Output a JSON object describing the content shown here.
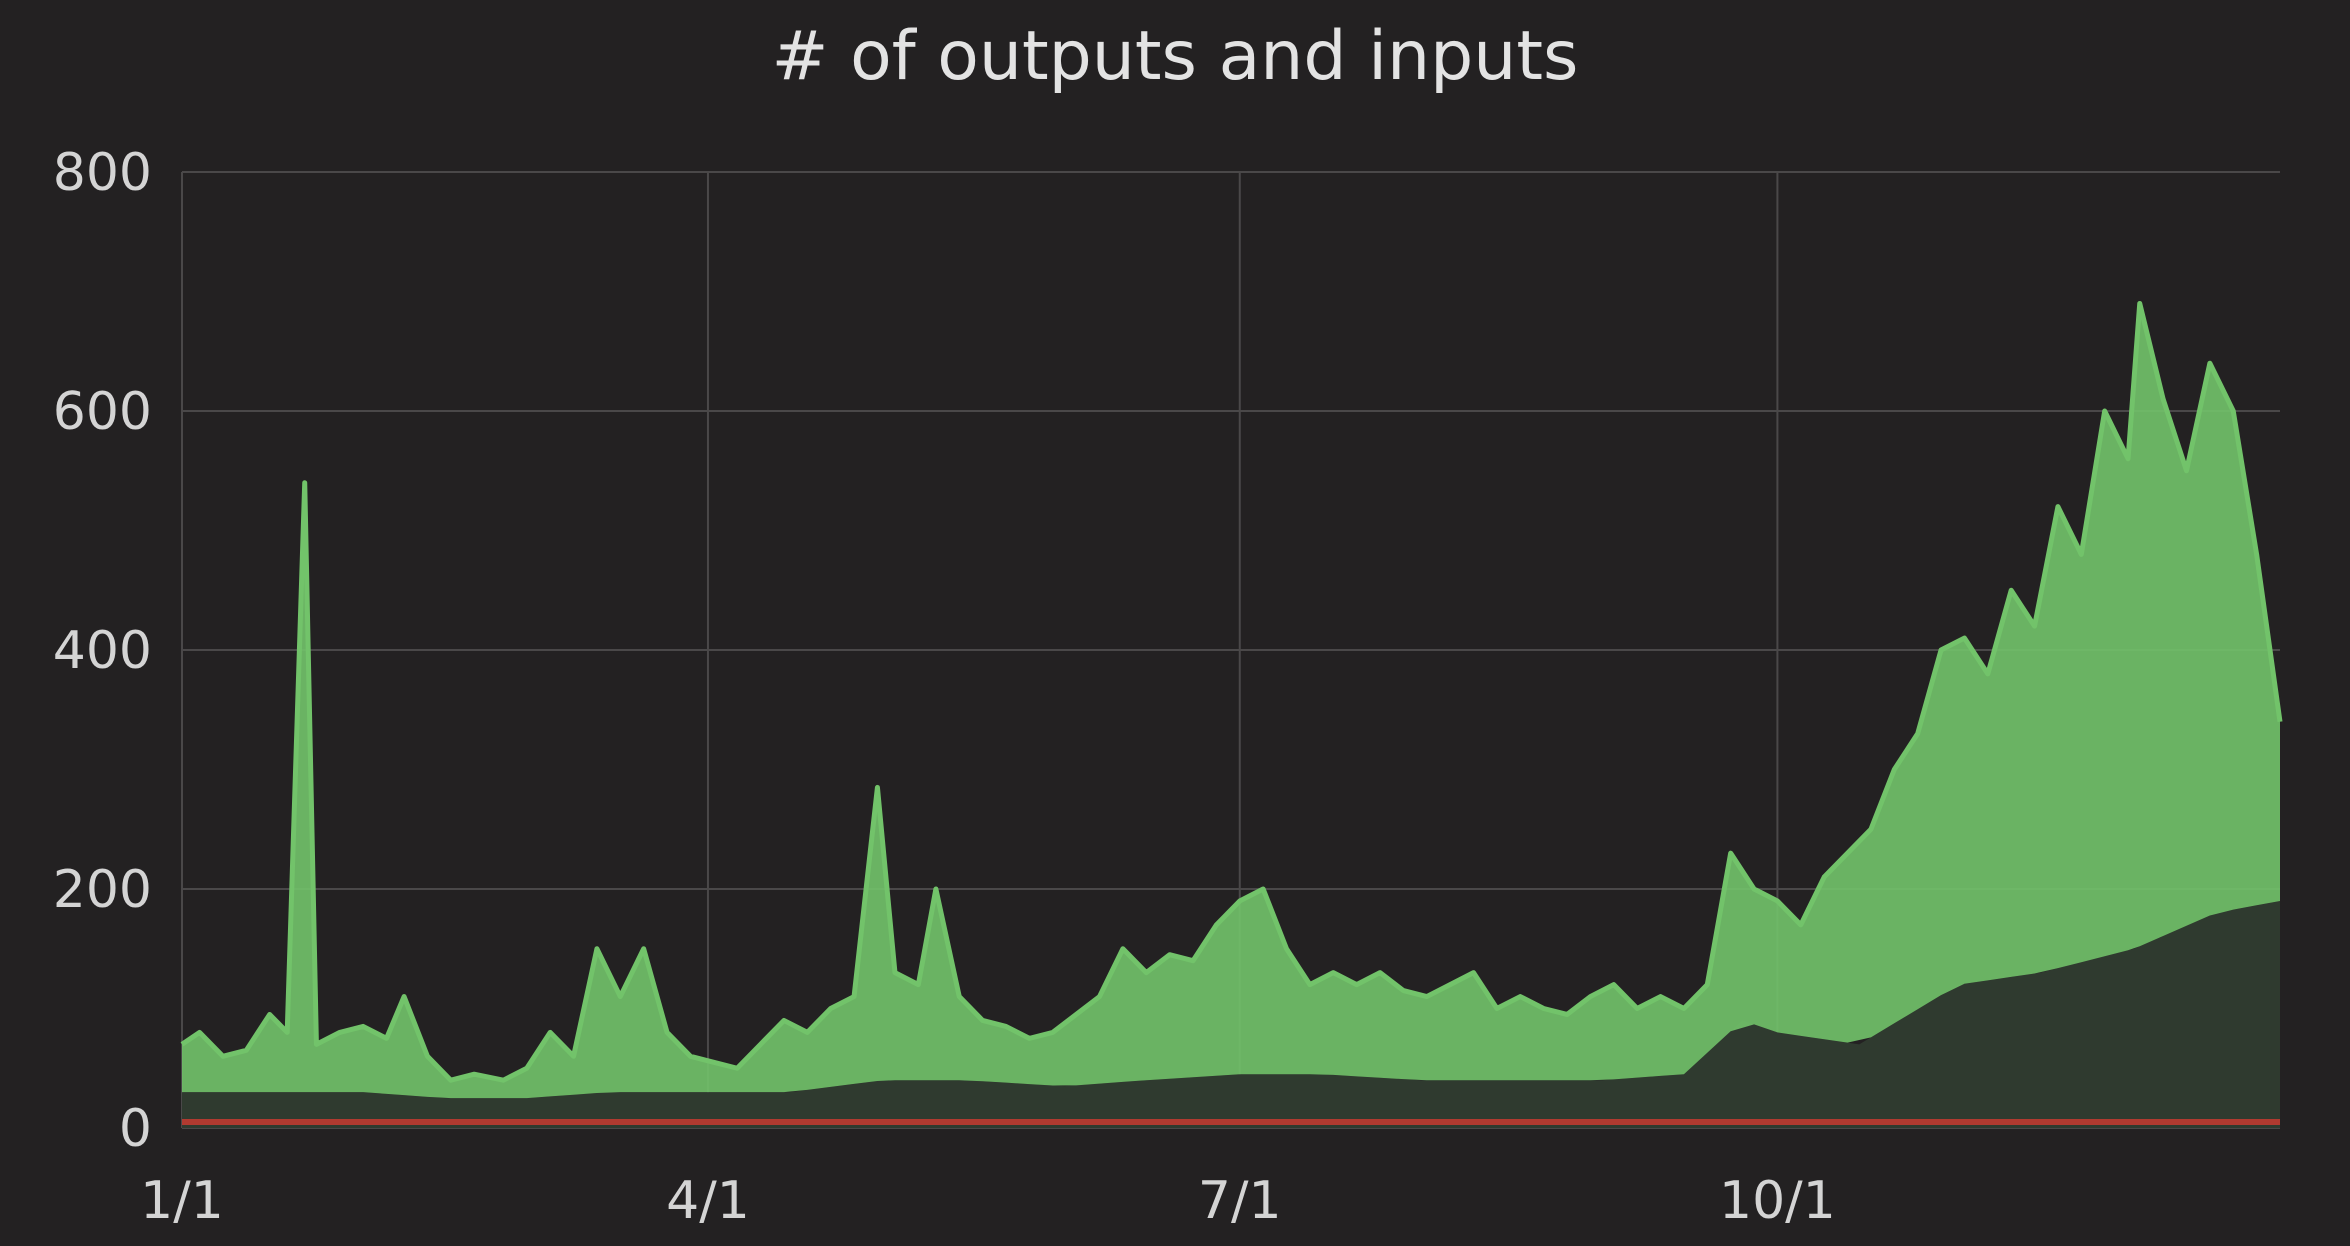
{
  "chart_data": {
    "type": "area",
    "title": "# of outputs and inputs",
    "xlabel": "",
    "ylabel": "",
    "ylim": [
      0,
      800
    ],
    "yticks": [
      0,
      200,
      400,
      600,
      800
    ],
    "xlim": [
      "2017-01-01",
      "2017-12-26"
    ],
    "xticks": [
      {
        "date": "2017-01-01",
        "label": "1/1"
      },
      {
        "date": "2017-04-01",
        "label": "4/1"
      },
      {
        "date": "2017-07-01",
        "label": "7/1"
      },
      {
        "date": "2017-10-01",
        "label": "10/1"
      }
    ],
    "grid": true,
    "legend": "none",
    "colors": {
      "background": "#232122",
      "grid": "#4a4849",
      "upper_series": "#72c36a",
      "lower_fill": "#2f3a2f",
      "baseline_series": "#b03a30"
    },
    "series": [
      {
        "role": "upper",
        "points": [
          [
            "2017-01-01",
            70
          ],
          [
            "2017-01-04",
            80
          ],
          [
            "2017-01-08",
            60
          ],
          [
            "2017-01-12",
            65
          ],
          [
            "2017-01-16",
            95
          ],
          [
            "2017-01-19",
            80
          ],
          [
            "2017-01-22",
            540
          ],
          [
            "2017-01-24",
            70
          ],
          [
            "2017-01-28",
            80
          ],
          [
            "2017-02-01",
            85
          ],
          [
            "2017-02-05",
            75
          ],
          [
            "2017-02-08",
            110
          ],
          [
            "2017-02-12",
            60
          ],
          [
            "2017-02-16",
            40
          ],
          [
            "2017-02-20",
            45
          ],
          [
            "2017-02-25",
            40
          ],
          [
            "2017-03-01",
            50
          ],
          [
            "2017-03-05",
            80
          ],
          [
            "2017-03-09",
            60
          ],
          [
            "2017-03-13",
            150
          ],
          [
            "2017-03-17",
            110
          ],
          [
            "2017-03-21",
            150
          ],
          [
            "2017-03-25",
            80
          ],
          [
            "2017-03-29",
            60
          ],
          [
            "2017-04-02",
            55
          ],
          [
            "2017-04-06",
            50
          ],
          [
            "2017-04-10",
            70
          ],
          [
            "2017-04-14",
            90
          ],
          [
            "2017-04-18",
            80
          ],
          [
            "2017-04-22",
            100
          ],
          [
            "2017-04-26",
            110
          ],
          [
            "2017-04-30",
            285
          ],
          [
            "2017-05-03",
            130
          ],
          [
            "2017-05-07",
            120
          ],
          [
            "2017-05-10",
            200
          ],
          [
            "2017-05-14",
            110
          ],
          [
            "2017-05-18",
            90
          ],
          [
            "2017-05-22",
            85
          ],
          [
            "2017-05-26",
            75
          ],
          [
            "2017-05-30",
            80
          ],
          [
            "2017-06-03",
            95
          ],
          [
            "2017-06-07",
            110
          ],
          [
            "2017-06-11",
            150
          ],
          [
            "2017-06-15",
            130
          ],
          [
            "2017-06-19",
            145
          ],
          [
            "2017-06-23",
            140
          ],
          [
            "2017-06-27",
            170
          ],
          [
            "2017-07-01",
            190
          ],
          [
            "2017-07-05",
            200
          ],
          [
            "2017-07-09",
            150
          ],
          [
            "2017-07-13",
            120
          ],
          [
            "2017-07-17",
            130
          ],
          [
            "2017-07-21",
            120
          ],
          [
            "2017-07-25",
            130
          ],
          [
            "2017-07-29",
            115
          ],
          [
            "2017-08-02",
            110
          ],
          [
            "2017-08-06",
            120
          ],
          [
            "2017-08-10",
            130
          ],
          [
            "2017-08-14",
            100
          ],
          [
            "2017-08-18",
            110
          ],
          [
            "2017-08-22",
            100
          ],
          [
            "2017-08-26",
            95
          ],
          [
            "2017-08-30",
            110
          ],
          [
            "2017-09-03",
            120
          ],
          [
            "2017-09-07",
            100
          ],
          [
            "2017-09-11",
            110
          ],
          [
            "2017-09-15",
            100
          ],
          [
            "2017-09-19",
            120
          ],
          [
            "2017-09-23",
            230
          ],
          [
            "2017-09-27",
            200
          ],
          [
            "2017-10-01",
            190
          ],
          [
            "2017-10-05",
            170
          ],
          [
            "2017-10-09",
            210
          ],
          [
            "2017-10-13",
            230
          ],
          [
            "2017-10-17",
            250
          ],
          [
            "2017-10-21",
            300
          ],
          [
            "2017-10-25",
            330
          ],
          [
            "2017-10-29",
            400
          ],
          [
            "2017-11-02",
            410
          ],
          [
            "2017-11-06",
            380
          ],
          [
            "2017-11-10",
            450
          ],
          [
            "2017-11-14",
            420
          ],
          [
            "2017-11-18",
            520
          ],
          [
            "2017-11-22",
            480
          ],
          [
            "2017-11-26",
            600
          ],
          [
            "2017-11-30",
            560
          ],
          [
            "2017-12-02",
            690
          ],
          [
            "2017-12-06",
            610
          ],
          [
            "2017-12-10",
            550
          ],
          [
            "2017-12-14",
            640
          ],
          [
            "2017-12-18",
            600
          ],
          [
            "2017-12-22",
            480
          ],
          [
            "2017-12-26",
            340
          ]
        ]
      },
      {
        "role": "lower",
        "points": [
          [
            "2017-01-01",
            30
          ],
          [
            "2017-01-15",
            30
          ],
          [
            "2017-02-01",
            30
          ],
          [
            "2017-02-15",
            25
          ],
          [
            "2017-03-01",
            25
          ],
          [
            "2017-03-15",
            30
          ],
          [
            "2017-04-01",
            30
          ],
          [
            "2017-04-15",
            30
          ],
          [
            "2017-05-01",
            40
          ],
          [
            "2017-05-15",
            40
          ],
          [
            "2017-06-01",
            35
          ],
          [
            "2017-06-15",
            40
          ],
          [
            "2017-07-01",
            45
          ],
          [
            "2017-07-15",
            45
          ],
          [
            "2017-08-01",
            40
          ],
          [
            "2017-08-15",
            40
          ],
          [
            "2017-09-01",
            40
          ],
          [
            "2017-09-15",
            45
          ],
          [
            "2017-09-25",
            90
          ],
          [
            "2017-10-01",
            80
          ],
          [
            "2017-10-15",
            70
          ],
          [
            "2017-11-01",
            120
          ],
          [
            "2017-11-15",
            130
          ],
          [
            "2017-12-01",
            150
          ],
          [
            "2017-12-15",
            180
          ],
          [
            "2017-12-26",
            190
          ]
        ]
      },
      {
        "role": "baseline",
        "points": [
          [
            "2017-01-01",
            5
          ],
          [
            "2017-12-26",
            5
          ]
        ]
      }
    ]
  }
}
